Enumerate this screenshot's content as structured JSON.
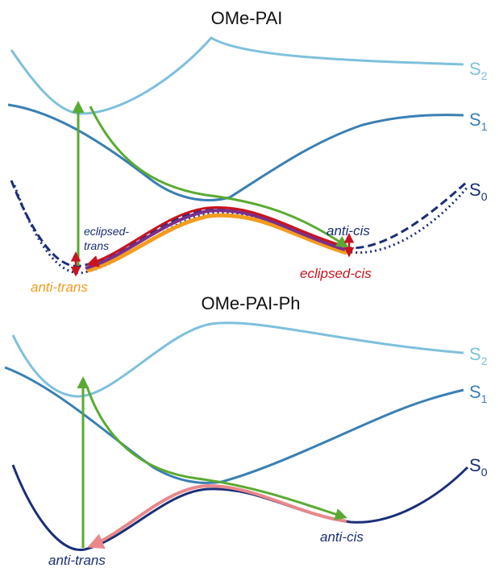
{
  "colors": {
    "s0": "#1a2f78",
    "s1": "#3a7fb3",
    "s2": "#7ec0dc",
    "arrow_green": "#5aaa32",
    "red": "#c8141e",
    "orange": "#f39c1e",
    "pink": "#e8888a",
    "purple": "#7a2f8a"
  },
  "panels": [
    {
      "title": "OMe-PAI",
      "states": [
        {
          "main": "S",
          "sub": "2"
        },
        {
          "main": "S",
          "sub": "1"
        },
        {
          "main": "S",
          "sub": "0"
        }
      ],
      "labels": {
        "eclipsed_trans_line1": "eclipsed-",
        "eclipsed_trans_line2": "trans",
        "anti_trans": "anti-trans",
        "anti_cis": "anti-cis",
        "eclipsed_cis": "eclipsed-cis"
      }
    },
    {
      "title": "OMe-PAI-Ph",
      "states": [
        {
          "main": "S",
          "sub": "2"
        },
        {
          "main": "S",
          "sub": "1"
        },
        {
          "main": "S",
          "sub": "0"
        }
      ],
      "labels": {
        "anti_trans": "anti-trans",
        "anti_cis": "anti-cis"
      }
    }
  ]
}
